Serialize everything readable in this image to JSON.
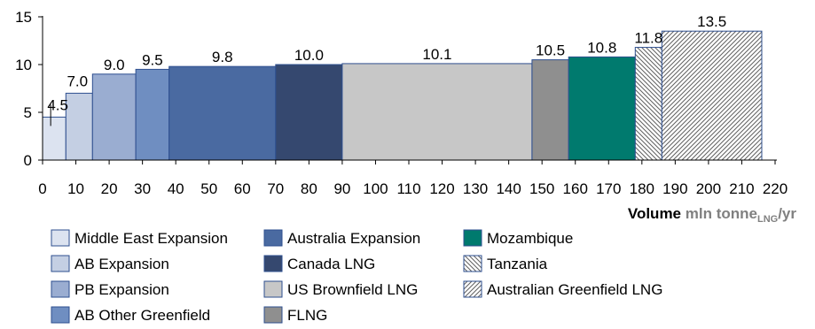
{
  "chart_data": {
    "type": "bar",
    "subtype": "variable-width step bar (supply cost curve)",
    "x_axis": {
      "label_bold": "Volume",
      "label_unit_prefix": "mln tonne",
      "label_unit_subscript": "LNG",
      "label_unit_suffix": "/yr",
      "min": 0,
      "max": 220,
      "ticks": [
        "0",
        "10",
        "20",
        "30",
        "40",
        "50",
        "60",
        "70",
        "80",
        "90",
        "100",
        "110",
        "120",
        "130",
        "140",
        "150",
        "160",
        "170",
        "180",
        "190",
        "200",
        "210",
        "220"
      ]
    },
    "y_axis": {
      "min": 0,
      "max": 15,
      "ticks": [
        "0",
        "5",
        "10",
        "15"
      ]
    },
    "grid": false,
    "legend_position": "bottom",
    "legend_columns": 3,
    "series": [
      {
        "name": "Middle East Expansion",
        "x_start": 0,
        "x_end": 7,
        "value": 4.5,
        "label": "4.5",
        "color": "#dce3f0",
        "pattern": "solid"
      },
      {
        "name": "AB Expansion",
        "x_start": 7,
        "x_end": 15,
        "value": 7.0,
        "label": "7.0",
        "color": "#c4cfe3",
        "pattern": "solid"
      },
      {
        "name": "PB Expansion",
        "x_start": 15,
        "x_end": 28,
        "value": 9.0,
        "label": "9.0",
        "color": "#9aadd1",
        "pattern": "solid"
      },
      {
        "name": "AB Other Greenfield",
        "x_start": 28,
        "x_end": 38,
        "value": 9.5,
        "label": "9.5",
        "color": "#6f8ec1",
        "pattern": "solid"
      },
      {
        "name": "Australia Expansion",
        "x_start": 38,
        "x_end": 70,
        "value": 9.8,
        "label": "9.8",
        "color": "#4a6aa1",
        "pattern": "solid"
      },
      {
        "name": "Canada LNG",
        "x_start": 70,
        "x_end": 90,
        "value": 10.0,
        "label": "10.0",
        "color": "#35486f",
        "pattern": "solid"
      },
      {
        "name": "US Brownfield LNG",
        "x_start": 90,
        "x_end": 147,
        "value": 10.1,
        "label": "10.1",
        "color": "#c7c7c7",
        "pattern": "solid"
      },
      {
        "name": "FLNG",
        "x_start": 147,
        "x_end": 158,
        "value": 10.5,
        "label": "10.5",
        "color": "#8f8f8f",
        "pattern": "solid"
      },
      {
        "name": "Mozambique",
        "x_start": 158,
        "x_end": 178,
        "value": 10.8,
        "label": "10.8",
        "color": "#007a6e",
        "pattern": "solid"
      },
      {
        "name": "Tanzania",
        "x_start": 178,
        "x_end": 186,
        "value": 11.8,
        "label": "11.8",
        "color": "#ffffff",
        "pattern": "hatch-back"
      },
      {
        "name": "Australian Greenfield LNG",
        "x_start": 186,
        "x_end": 216,
        "value": 13.5,
        "label": "13.5",
        "color": "#ffffff",
        "pattern": "hatch-forward"
      }
    ],
    "legend": [
      [
        "Middle East Expansion",
        "AB Expansion",
        "PB Expansion",
        "AB Other Greenfield"
      ],
      [
        "Australia Expansion",
        "Canada LNG",
        "US Brownfield LNG",
        "FLNG"
      ],
      [
        "Mozambique",
        "Tanzania",
        "Australian Greenfield LNG"
      ]
    ],
    "colors": {
      "border": "#2e4f8f",
      "axis": "#000000"
    }
  }
}
